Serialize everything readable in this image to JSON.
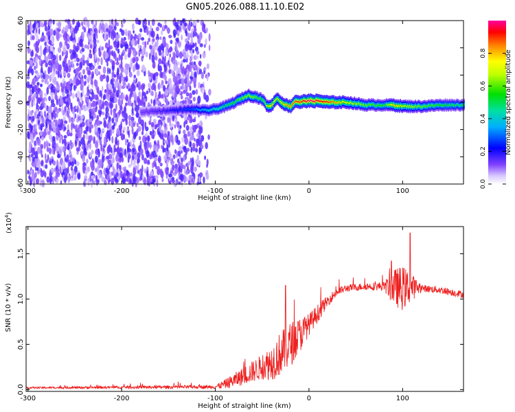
{
  "title": "GN05.2026.088.11.10.E02",
  "chart_data": [
    {
      "type": "heatmap",
      "xlabel": "Height of straight line (km)",
      "ylabel": "Frequency (Hz)",
      "xlim": [
        -302,
        165
      ],
      "ylim": [
        -60,
        60
      ],
      "xticks": [
        -300,
        -200,
        -100,
        0,
        100
      ],
      "yticks": [
        -60,
        -40,
        -20,
        0,
        20,
        40,
        60
      ],
      "colorbar": {
        "label": "Normalized spectral amplitude",
        "ticks": [
          0.0,
          0.2,
          0.4,
          0.6,
          0.8
        ],
        "range": [
          0,
          1
        ]
      },
      "ridge": {
        "x": [
          -175,
          -150,
          -125,
          -110,
          -100,
          -90,
          -80,
          -72,
          -65,
          -58,
          -50,
          -45,
          -40,
          -35,
          -30,
          -25,
          -20,
          -15,
          -10,
          -5,
          0,
          10,
          20,
          40,
          60,
          80,
          90,
          100,
          120,
          140,
          160,
          165
        ],
        "freq": [
          -7,
          -6,
          -5,
          -6,
          -5,
          -3,
          0,
          3,
          5,
          4,
          2,
          -3,
          -2,
          3,
          0,
          -2,
          -3,
          1,
          0,
          1,
          1,
          1,
          0,
          0,
          -2,
          -2,
          -2,
          -3,
          -3,
          -2,
          -2,
          -2
        ],
        "amplitude": [
          0.15,
          0.2,
          0.3,
          0.4,
          0.45,
          0.5,
          0.55,
          0.6,
          0.65,
          0.6,
          0.55,
          0.7,
          0.8,
          0.7,
          0.75,
          0.8,
          0.85,
          0.9,
          0.9,
          0.95,
          1.0,
          0.95,
          0.9,
          0.7,
          0.6,
          0.55,
          0.8,
          0.7,
          0.6,
          0.55,
          0.5,
          0.5
        ]
      }
    },
    {
      "type": "line",
      "series_name": "SNR",
      "xlabel": "Height of straight line (km)",
      "ylabel": "SNR (10 * v/v)",
      "y_multiplier_label": "(x10",
      "y_multiplier_exp": "4",
      "xlim": [
        -302,
        165
      ],
      "ylim": [
        -0.02,
        1.8
      ],
      "xticks": [
        -300,
        -200,
        -100,
        0,
        100
      ],
      "yticks": [
        0.0,
        0.5,
        1.0,
        1.5
      ],
      "envelope": {
        "x": [
          -302,
          -100,
          -90,
          -80,
          -70,
          -60,
          -50,
          -40,
          -30,
          -20,
          -10,
          0,
          10,
          20,
          30,
          40,
          60,
          80,
          90,
          100,
          110,
          120,
          140,
          165
        ],
        "base": [
          0.02,
          0.03,
          0.06,
          0.1,
          0.15,
          0.2,
          0.25,
          0.3,
          0.4,
          0.5,
          0.6,
          0.72,
          0.85,
          0.98,
          1.08,
          1.12,
          1.14,
          1.14,
          1.13,
          1.12,
          1.13,
          1.12,
          1.1,
          1.05
        ],
        "noise": [
          0.01,
          0.02,
          0.05,
          0.08,
          0.1,
          0.12,
          0.14,
          0.2,
          0.25,
          0.25,
          0.2,
          0.12,
          0.1,
          0.06,
          0.05,
          0.04,
          0.04,
          0.05,
          0.2,
          0.25,
          0.15,
          0.04,
          0.04,
          0.04
        ]
      },
      "peaks": [
        {
          "x": -25,
          "y": 1.15
        },
        {
          "x": 88,
          "y": 1.42
        },
        {
          "x": 108,
          "y": 1.73
        }
      ]
    }
  ],
  "colors": {
    "line": "#ee2020",
    "background": "#ffffff",
    "axis": "#000000"
  }
}
